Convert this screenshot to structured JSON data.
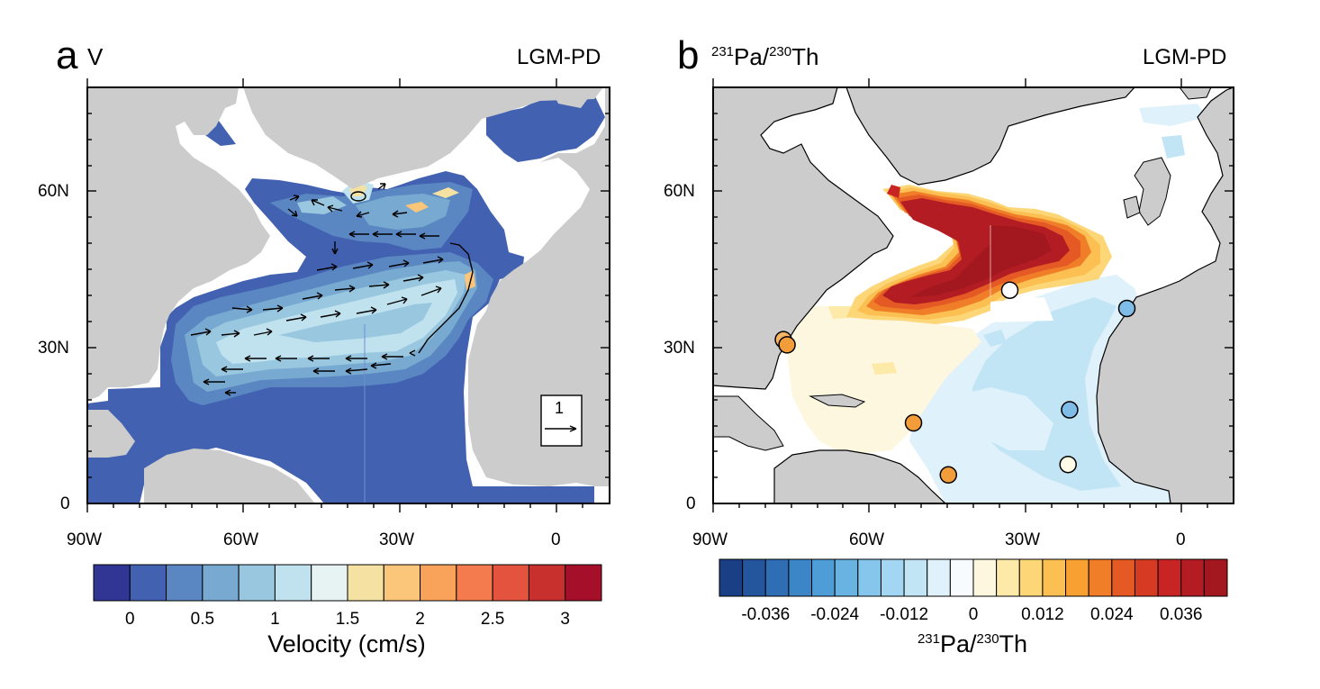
{
  "panels": [
    {
      "letter": "a",
      "variable": "V",
      "experiment": "LGM-PD",
      "axis_ticks_x": [
        "90W",
        "60W",
        "30W",
        "0"
      ],
      "axis_ticks_y": [
        "60N",
        "30N",
        "0"
      ],
      "reference_vector": "1",
      "colorbar": {
        "title": "Velocity (cm/s)",
        "ticks": [
          "0",
          "0.5",
          "1",
          "1.5",
          "2",
          "2.5",
          "3"
        ],
        "colors": [
          "#313695",
          "#4261b1",
          "#5a87c2",
          "#78a9d1",
          "#98c7df",
          "#bfe2ee",
          "#e6f3f2",
          "#f5e1a1",
          "#fbc57a",
          "#f9a25a",
          "#f37b4d",
          "#e4533d",
          "#c8302d",
          "#a50f2a"
        ]
      }
    },
    {
      "letter": "b",
      "variable_base_1": "Pa/",
      "variable_sup_1": "231",
      "variable_sup_2": "230",
      "variable_base_2": "Th",
      "experiment": "LGM-PD",
      "axis_ticks_x": [
        "90W",
        "60W",
        "30W",
        "0"
      ],
      "axis_ticks_y": [
        "60N",
        "30N",
        "0"
      ],
      "colorbar": {
        "title_sup_1": "231",
        "title_base_1": "Pa/",
        "title_sup_2": "230",
        "title_base_2": "Th",
        "ticks": [
          "-0.036",
          "-0.024",
          "-0.012",
          "0",
          "0.012",
          "0.024",
          "0.036"
        ],
        "colors": [
          "#1b3f84",
          "#24569d",
          "#2f6db5",
          "#3c86c8",
          "#4e9dd6",
          "#68b3e2",
          "#86c6ec",
          "#a3d6f2",
          "#c2e5f6",
          "#dff1fa",
          "#f7fbfd",
          "#fdf7df",
          "#fde9a8",
          "#fcd677",
          "#fbbf52",
          "#f8a032",
          "#f07d28",
          "#e45924",
          "#d63a23",
          "#c92424",
          "#b31c22",
          "#a3181f"
        ]
      },
      "observation_sites": [
        {
          "lon": -76.5,
          "lat": 31.5,
          "value_class": "orange-light"
        },
        {
          "lon": -75.8,
          "lat": 30.5,
          "value_class": "orange"
        },
        {
          "lon": -51.5,
          "lat": 15.5,
          "value_class": "orange"
        },
        {
          "lon": -44.8,
          "lat": 5.5,
          "value_class": "orange"
        },
        {
          "lon": -33,
          "lat": 41,
          "value_class": "white"
        },
        {
          "lon": -10.5,
          "lat": 37.5,
          "value_class": "blue"
        },
        {
          "lon": -21.5,
          "lat": 18,
          "value_class": "blue"
        },
        {
          "lon": -21.8,
          "lat": 7.5,
          "value_class": "cream"
        }
      ]
    }
  ]
}
